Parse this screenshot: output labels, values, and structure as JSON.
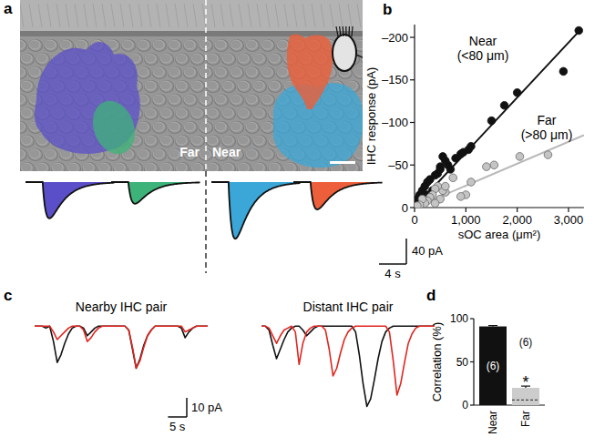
{
  "panel_a": {
    "panel_label": "a",
    "labels": [
      "Far",
      "Near"
    ],
    "traces": [
      {
        "color": "#5b4fc9",
        "amplitude": -57
      },
      {
        "color": "#3db37a",
        "amplitude": -34
      },
      {
        "color": "#3aa7d8",
        "amplitude": -89
      },
      {
        "color": "#ec5f3a",
        "amplitude": -43
      }
    ],
    "scale_bar": {
      "x": {
        "value": 4,
        "label": "4 s"
      },
      "y": {
        "value": 40,
        "label": "40 pA"
      }
    }
  },
  "chart_data": [
    {
      "type": "scatter",
      "panel_label": "b",
      "x_label": "sOC area (μm²)",
      "y_label": "IHC response (pA)",
      "xlim": [
        0,
        3300
      ],
      "ylim": [
        0,
        -215
      ],
      "xticks": [
        0,
        {
          "value": 1000,
          "label": "1,000"
        },
        {
          "value": 2000,
          "label": "2,000"
        },
        {
          "value": 3000,
          "label": "3,000"
        }
      ],
      "yticks": [
        0,
        {
          "value": -50,
          "label": "–50"
        },
        {
          "value": -100,
          "label": "–100"
        },
        {
          "value": -150,
          "label": "–150"
        },
        {
          "value": -200,
          "label": "–200"
        }
      ],
      "series": [
        {
          "name": "Near",
          "range_label": "(<80 μm)",
          "color": "#111111",
          "marker": "circle",
          "x": [
            3200,
            2900,
            2000,
            1750,
            1500,
            1050,
            950,
            900,
            650,
            550,
            600,
            500,
            450,
            400,
            300,
            250,
            200,
            150,
            100,
            50,
            350,
            500,
            700,
            250,
            120,
            800,
            1100
          ],
          "values": [
            -208,
            -160,
            -135,
            -120,
            -102,
            -68,
            -65,
            -63,
            -50,
            -60,
            -55,
            -48,
            -40,
            -38,
            -33,
            -30,
            -25,
            -20,
            -15,
            -10,
            -20,
            -45,
            -45,
            -15,
            -8,
            -58,
            -72
          ],
          "fit": {
            "x": [
              0,
              3250
            ],
            "values": [
              0,
              -210
            ]
          }
        },
        {
          "name": "Far",
          "range_label": "(>80 μm)",
          "color": "#c4c4c4",
          "marker": "circle",
          "x": [
            2600,
            2050,
            1550,
            1400,
            1100,
            1000,
            900,
            750,
            600,
            550,
            500,
            450,
            400,
            350,
            300,
            250,
            200,
            150,
            100,
            50,
            600,
            400
          ],
          "values": [
            -62,
            -60,
            -50,
            -48,
            -30,
            -15,
            -13,
            -35,
            -18,
            -20,
            -10,
            -25,
            -22,
            -15,
            -12,
            -8,
            -5,
            -10,
            -3,
            -2,
            -25,
            -5
          ],
          "fit": {
            "x": [
              0,
              3300
            ],
            "values": [
              0,
              -85
            ]
          }
        }
      ]
    },
    {
      "type": "line",
      "panel_label": "c",
      "title": "Nearby IHC pair",
      "tick_labels": false,
      "xlim": [
        0,
        46
      ],
      "ylim": [
        -45,
        3
      ],
      "x": [
        0,
        1,
        2,
        3,
        4,
        5,
        6,
        7,
        8,
        9,
        10,
        11,
        12,
        13,
        14,
        15,
        16,
        17,
        18,
        19,
        20,
        21,
        22,
        23,
        24,
        25,
        26,
        27,
        28,
        29,
        30,
        31,
        32,
        33,
        34,
        35,
        36,
        37,
        38,
        39,
        40,
        41,
        42,
        43,
        44,
        45,
        46
      ],
      "series": [
        {
          "color": "#111111",
          "values": [
            0,
            0,
            0,
            -1,
            0,
            -8,
            -19,
            -15,
            -9,
            -4,
            -1,
            0,
            0,
            -1,
            -5,
            -3,
            -1,
            0,
            0,
            0,
            0,
            0,
            0,
            0,
            0,
            -2,
            -12,
            -22,
            -17,
            -10,
            -5,
            -2,
            0,
            0,
            0,
            0,
            0,
            0,
            0,
            -1,
            -6,
            -3,
            -1,
            0,
            0,
            0,
            0
          ]
        },
        {
          "color": "#e0261f",
          "values": [
            0,
            0,
            0,
            0,
            0,
            -3,
            -7,
            -5,
            -3,
            -1,
            0,
            0,
            0,
            -2,
            -8,
            -6,
            -3,
            -1,
            0,
            0,
            0,
            0,
            0,
            0,
            0,
            -2,
            -11,
            -22,
            -18,
            -11,
            -5,
            -2,
            0,
            0,
            0,
            0,
            0,
            0,
            0,
            0,
            -3,
            -2,
            -1,
            0,
            0,
            0,
            0
          ]
        }
      ],
      "scale_bar": {
        "x": {
          "value": 5,
          "label": "5 s"
        },
        "y": {
          "value": 10,
          "label": "10 pA"
        }
      }
    },
    {
      "type": "line",
      "title": "Distant IHC pair",
      "tick_labels": false,
      "xlim": [
        0,
        46
      ],
      "ylim": [
        -45,
        3
      ],
      "x": [
        0,
        1,
        2,
        3,
        4,
        5,
        6,
        7,
        8,
        9,
        10,
        11,
        12,
        13,
        14,
        15,
        16,
        17,
        18,
        19,
        20,
        21,
        22,
        23,
        24,
        25,
        26,
        27,
        28,
        29,
        30,
        31,
        32,
        33,
        34,
        35,
        36,
        37,
        38,
        39,
        40,
        41,
        42,
        43,
        44,
        45,
        46
      ],
      "series": [
        {
          "color": "#111111",
          "values": [
            0,
            0,
            -2,
            -10,
            -17,
            -12,
            -7,
            -3,
            -1,
            0,
            0,
            -2,
            -5,
            -3,
            -1,
            0,
            0,
            0,
            0,
            0,
            0,
            0,
            0,
            0,
            0,
            -3,
            -15,
            -30,
            -42,
            -38,
            -28,
            -17,
            -8,
            -3,
            -1,
            0,
            0,
            0,
            0,
            0,
            0,
            0,
            0,
            0,
            0,
            0,
            0
          ]
        },
        {
          "color": "#e0261f",
          "values": [
            0,
            0,
            -1,
            -5,
            -9,
            -5,
            -2,
            -1,
            0,
            -3,
            -20,
            -9,
            -3,
            -1,
            0,
            0,
            0,
            -2,
            -12,
            -26,
            -22,
            -14,
            -7,
            -3,
            -1,
            0,
            0,
            0,
            0,
            0,
            0,
            0,
            0,
            0,
            -3,
            -18,
            -36,
            -30,
            -19,
            -9,
            -4,
            -1,
            0,
            0,
            0,
            0,
            0
          ]
        }
      ]
    },
    {
      "type": "bar",
      "panel_label": "d",
      "y_label": "Correlation (%)",
      "categories": [
        "Near",
        "Far"
      ],
      "values": [
        91,
        20
      ],
      "errors": [
        1,
        2
      ],
      "colors": [
        "#111111",
        "#cccccc"
      ],
      "ylim": [
        0,
        100
      ],
      "yticks": [
        0,
        50,
        100
      ],
      "n_labels": [
        "(6)",
        "(6)"
      ],
      "annotation": {
        "text": "*",
        "category": "Far"
      },
      "baseline": 6
    }
  ]
}
